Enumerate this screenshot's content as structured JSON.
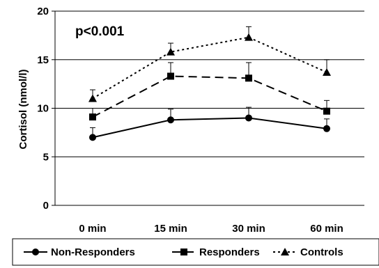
{
  "chart_data": {
    "type": "line",
    "categories": [
      "0 min",
      "15 min",
      "30 min",
      "60 min"
    ],
    "ylabel": "Cortisol (nmol/l)",
    "ylim": [
      0,
      20
    ],
    "yticks": [
      0,
      5,
      10,
      15,
      20
    ],
    "grid": true,
    "annotation": "p<0.001",
    "legend_position": "bottom",
    "series": [
      {
        "name": "Non-Responders",
        "values": [
          7.0,
          8.8,
          9.0,
          7.9
        ],
        "err": [
          1.0,
          1.1,
          1.1,
          1.0
        ],
        "marker": "circle",
        "dash": "solid"
      },
      {
        "name": "Responders",
        "values": [
          9.1,
          13.3,
          13.1,
          9.7
        ],
        "err": [
          0.9,
          1.4,
          1.6,
          1.1
        ],
        "marker": "square",
        "dash": "dashed"
      },
      {
        "name": "Controls",
        "values": [
          11.0,
          15.8,
          17.3,
          13.7
        ],
        "err": [
          0.9,
          0.9,
          1.1,
          1.3
        ],
        "marker": "triangle",
        "dash": "dotted"
      }
    ]
  }
}
